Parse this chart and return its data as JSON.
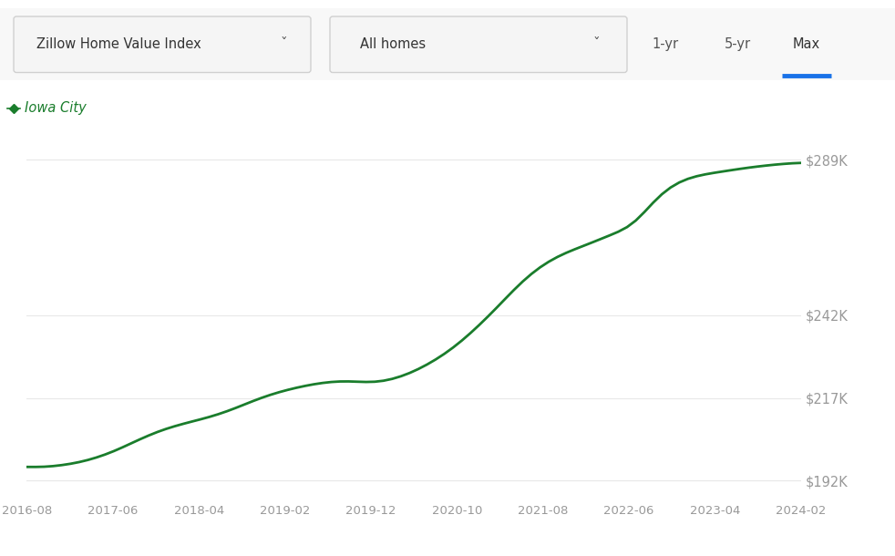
{
  "line_color": "#1a7d2c",
  "line_width": 2.0,
  "background_color": "#ffffff",
  "grid_color": "#e8e8e8",
  "label_color": "#999999",
  "legend_label": "Iowa City",
  "legend_marker_color": "#1a7d2c",
  "yticks": [
    192000,
    217000,
    242000,
    289000
  ],
  "ytick_labels": [
    "$192K",
    "$217K",
    "$242K",
    "$289K"
  ],
  "xtick_labels": [
    "2016-08",
    "2017-06",
    "2018-04",
    "2019-02",
    "2019-12",
    "2020-10",
    "2021-08",
    "2022-06",
    "2023-04",
    "2024-02"
  ],
  "header_items": [
    "Zillow Home Value Index",
    "All homes",
    "1-yr",
    "5-yr",
    "Max"
  ],
  "max_underline_color": "#1a73e8",
  "dropdown_bg": "#f5f5f5",
  "dropdown_border": "#d0d0d0",
  "data_y": [
    196200,
    196000,
    196100,
    196300,
    196600,
    197000,
    197500,
    198100,
    198900,
    199800,
    200800,
    202000,
    203300,
    204500,
    205700,
    206800,
    207700,
    208500,
    209200,
    209900,
    210500,
    211200,
    212000,
    212900,
    213900,
    215000,
    216100,
    217100,
    218000,
    218800,
    219500,
    220100,
    220700,
    221200,
    221600,
    221900,
    222100,
    222100,
    221900,
    221700,
    221700,
    222000,
    222600,
    223400,
    224400,
    225600,
    227000,
    228500,
    230200,
    232100,
    234200,
    236500,
    239000,
    241500,
    244200,
    247000,
    249800,
    252400,
    254700,
    256700,
    258400,
    259800,
    261000,
    262000,
    263000,
    264000,
    265100,
    266200,
    267200,
    268100,
    270000,
    273000,
    276500,
    279000,
    281000,
    282500,
    283500,
    284200,
    284700,
    285100,
    285500,
    285900,
    286300,
    286700,
    287000,
    287300,
    287600,
    287800,
    288000,
    288200
  ]
}
